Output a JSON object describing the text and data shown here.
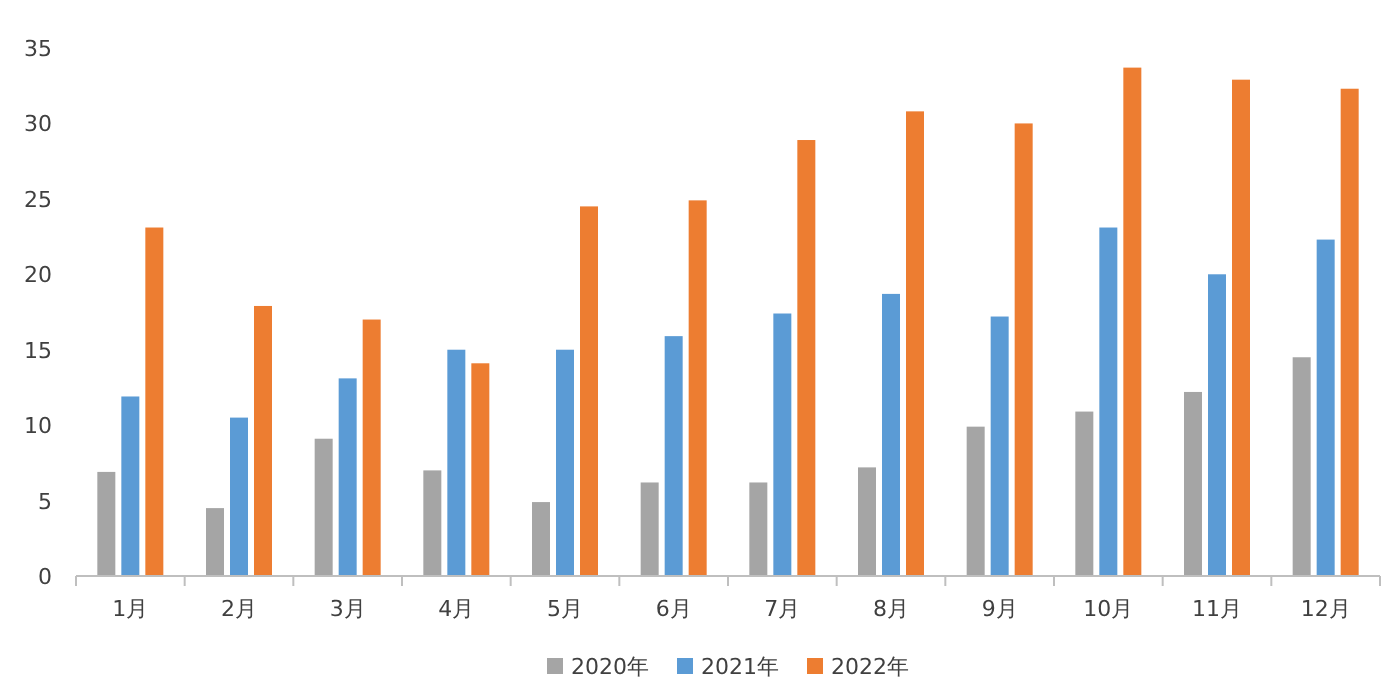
{
  "chart_data": {
    "type": "bar",
    "categories": [
      "1月",
      "2月",
      "3月",
      "4月",
      "5月",
      "6月",
      "7月",
      "8月",
      "9月",
      "10月",
      "11月",
      "12月"
    ],
    "series": [
      {
        "name": "2020年",
        "color": "#a5a5a5",
        "values": [
          6.9,
          4.5,
          9.1,
          7.0,
          4.9,
          6.2,
          6.2,
          7.2,
          9.9,
          10.9,
          12.2,
          14.5
        ]
      },
      {
        "name": "2021年",
        "color": "#5b9bd5",
        "values": [
          11.9,
          10.5,
          13.1,
          15.0,
          15.0,
          15.9,
          17.4,
          18.7,
          17.2,
          23.1,
          20.0,
          22.3
        ]
      },
      {
        "name": "2022年",
        "color": "#ed7d31",
        "values": [
          23.1,
          17.9,
          17.0,
          14.1,
          24.5,
          24.9,
          28.9,
          30.8,
          30.0,
          33.7,
          32.9,
          32.3
        ]
      }
    ],
    "ylim": [
      0,
      35
    ],
    "yticks": [
      0,
      5,
      10,
      15,
      20,
      25,
      30,
      35
    ],
    "grid": false,
    "legend": "bottom"
  }
}
